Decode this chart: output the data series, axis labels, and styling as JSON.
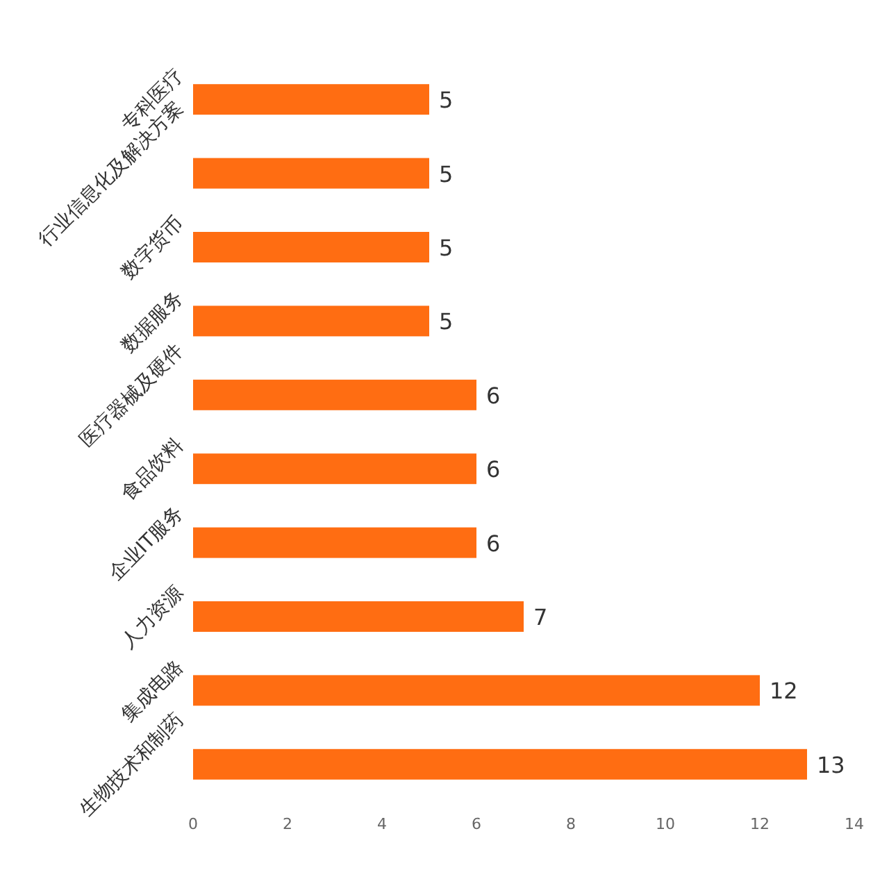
{
  "chart_data": {
    "type": "bar",
    "orientation": "horizontal",
    "categories": [
      "专科医疗",
      "行业信息化及解决方案",
      "数字货币",
      "数据服务",
      "医疗器械及硬件",
      "食品饮料",
      "企业IT服务",
      "人力资源",
      "集成电路",
      "生物技术和制药"
    ],
    "values": [
      5,
      5,
      5,
      5,
      6,
      6,
      6,
      7,
      12,
      13
    ],
    "color": "#ff6d12",
    "xlim": [
      0,
      14
    ],
    "xticks": [
      0,
      2,
      4,
      6,
      8,
      10,
      12,
      14
    ],
    "data_labels": true,
    "grid": false
  }
}
